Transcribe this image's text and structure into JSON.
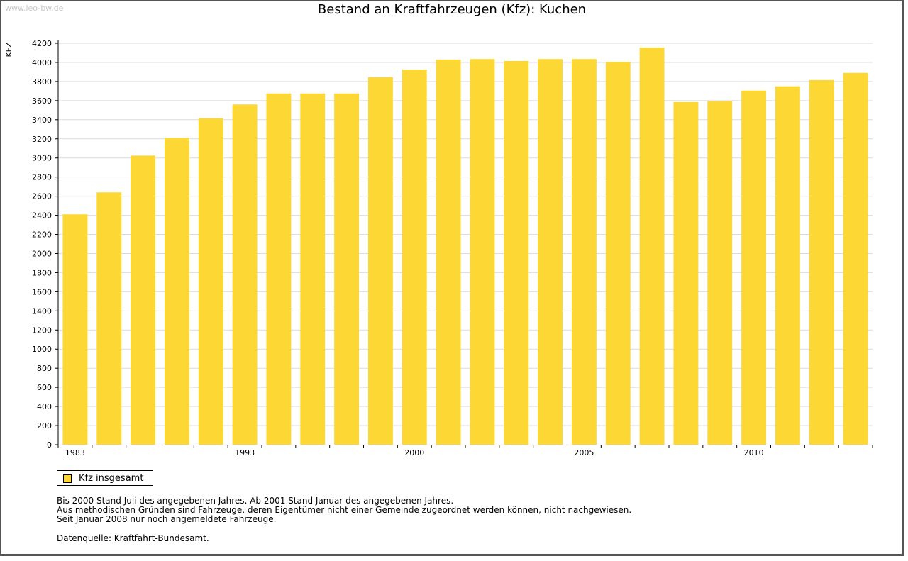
{
  "watermark": "www.leo-bw.de",
  "chart_data": {
    "type": "bar",
    "title": "Bestand an Kraftfahrzeugen (Kfz): Kuchen",
    "ylabel": "KFZ",
    "xlabel": "",
    "ylim": [
      0,
      4200
    ],
    "yticks": [
      0,
      200,
      400,
      600,
      800,
      1000,
      1200,
      1400,
      1600,
      1800,
      2000,
      2200,
      2400,
      2600,
      2800,
      3000,
      3200,
      3400,
      3600,
      3800,
      4000,
      4200
    ],
    "x_tick_labels": [
      "1983",
      "1993",
      "2000",
      "2005",
      "2010"
    ],
    "grid": true,
    "legend_position": "bottom-left",
    "series": [
      {
        "name": "Kfz insgesamt",
        "color": "#fdd835",
        "values": [
          2410,
          2640,
          3025,
          3210,
          3415,
          3560,
          3675,
          3675,
          3675,
          3845,
          3925,
          4030,
          4035,
          4015,
          4035,
          4035,
          4005,
          4155,
          3585,
          3595,
          3705,
          3750,
          3815,
          3890
        ]
      }
    ]
  },
  "notes": [
    "Bis 2000 Stand Juli des angegebenen Jahres. Ab 2001 Stand Januar des angegebenen Jahres.",
    "Aus methodischen Gründen sind Fahrzeuge, deren Eigentümer nicht einer Gemeinde zugeordnet werden können, nicht nachgewiesen.",
    "Seit Januar 2008 nur noch angemeldete Fahrzeuge."
  ],
  "source": "Datenquelle: Kraftfahrt-Bundesamt."
}
